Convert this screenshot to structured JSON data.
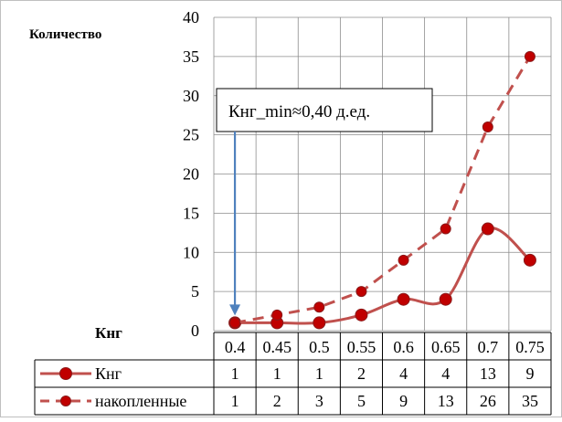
{
  "chart_data": {
    "type": "line",
    "ylabel": "Количество",
    "xlabel": "Кнг",
    "ylim": [
      0,
      40
    ],
    "y_ticks": [
      0,
      5,
      10,
      15,
      20,
      25,
      30,
      35,
      40
    ],
    "categories": [
      "0.4",
      "0.45",
      "0.5",
      "0.55",
      "0.6",
      "0.65",
      "0.7",
      "0.75"
    ],
    "grid": true,
    "data_table": true,
    "series": [
      {
        "name": "Кнг",
        "values": [
          1,
          1,
          1,
          2,
          4,
          4,
          13,
          9
        ],
        "color": "#c0504d",
        "style": "solid"
      },
      {
        "name": "накопленные",
        "values": [
          1,
          2,
          3,
          5,
          9,
          13,
          26,
          35
        ],
        "color": "#c0504d",
        "style": "dashed"
      }
    ],
    "annotation": {
      "text": "Кнг_min≈0,40 д.ед.",
      "arrow_to_category": "0.4",
      "arrow_color": "#4f81bd"
    }
  }
}
